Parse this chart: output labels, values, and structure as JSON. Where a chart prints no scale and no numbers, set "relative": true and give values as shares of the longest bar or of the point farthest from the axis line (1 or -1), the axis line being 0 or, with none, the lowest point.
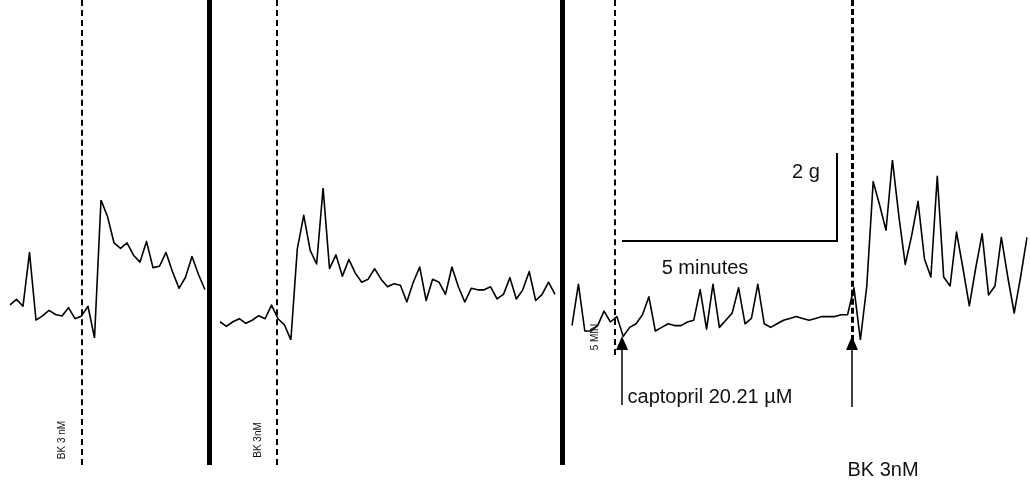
{
  "chart_data": [
    {
      "type": "line",
      "relative": true,
      "color": "#000000",
      "marker": "none",
      "tick_labels": false,
      "categories": [
        null,
        null,
        null,
        null,
        null,
        null,
        null,
        null,
        null,
        null,
        null,
        null,
        null,
        null,
        null,
        null,
        null,
        null,
        null,
        null,
        null,
        null,
        null,
        null,
        null,
        null,
        null,
        null,
        null,
        null,
        null
      ],
      "values": [
        0.24,
        0.28,
        0.23,
        0.62,
        0.13,
        0.16,
        0.2,
        0.17,
        0.16,
        0.22,
        0.14,
        0.16,
        0.23,
        0,
        1,
        0.88,
        0.69,
        0.65,
        0.69,
        0.6,
        0.55,
        0.7,
        0.51,
        0.52,
        0.62,
        0.48,
        0.36,
        0.44,
        0.59,
        0.46,
        0.35
      ],
      "annotations": [
        "BK 3 nM"
      ]
    },
    {
      "type": "line",
      "relative": true,
      "color": "#000000",
      "marker": "none",
      "tick_labels": false,
      "categories": [
        null,
        null,
        null,
        null,
        null,
        null,
        null,
        null,
        null,
        null,
        null,
        null,
        null,
        null,
        null,
        null,
        null,
        null,
        null,
        null,
        null,
        null,
        null,
        null,
        null,
        null,
        null,
        null,
        null,
        null,
        null,
        null,
        null,
        null,
        null,
        null,
        null,
        null,
        null,
        null,
        null,
        null,
        null,
        null,
        null,
        null,
        null,
        null,
        null,
        null,
        null,
        null,
        null
      ],
      "values": [
        0.12,
        0.09,
        0.12,
        0.14,
        0.11,
        0.13,
        0.16,
        0.14,
        0.23,
        0.14,
        0.1,
        0,
        0.6,
        0.82,
        0.59,
        0.5,
        1,
        0.47,
        0.56,
        0.42,
        0.53,
        0.44,
        0.38,
        0.4,
        0.47,
        0.4,
        0.35,
        0.37,
        0.36,
        0.25,
        0.38,
        0.48,
        0.26,
        0.4,
        0.38,
        0.3,
        0.48,
        0.35,
        0.25,
        0.34,
        0.33,
        0.33,
        0.35,
        0.27,
        0.3,
        0.41,
        0.27,
        0.33,
        0.45,
        0.26,
        0.3,
        0.38,
        0.3
      ],
      "annotations": [
        "BK 3nM"
      ]
    },
    {
      "type": "line",
      "relative": true,
      "color": "#000000",
      "marker": "none",
      "tick_labels": false,
      "categories": [
        null,
        null,
        null,
        null,
        null,
        null,
        null,
        null,
        null,
        null,
        null,
        null,
        null,
        null,
        null,
        null,
        null,
        null,
        null,
        null,
        null,
        null,
        null,
        null,
        null,
        null,
        null,
        null,
        null,
        null,
        null,
        null,
        null,
        null,
        null,
        null,
        null,
        null,
        null,
        null,
        null,
        null,
        null,
        null,
        null,
        null,
        null,
        null,
        null,
        null,
        null,
        null,
        null,
        null,
        null,
        null,
        null,
        null,
        null,
        null,
        null,
        null,
        null,
        null,
        null,
        null,
        null,
        null,
        null,
        null,
        null,
        null
      ],
      "values": [
        0.08,
        0.31,
        0.05,
        0.05,
        0.08,
        0.16,
        0.1,
        0.13,
        0.02,
        0.07,
        0.09,
        0.14,
        0.24,
        0.05,
        0.07,
        0.09,
        0.08,
        0.08,
        0.1,
        0.11,
        0.28,
        0.06,
        0.31,
        0.07,
        0.11,
        0.15,
        0.29,
        0.09,
        0.12,
        0.31,
        0.09,
        0.07,
        0.09,
        0.11,
        0.12,
        0.13,
        0.12,
        0.11,
        0.12,
        0.13,
        0.13,
        0.13,
        0.14,
        0.14,
        0.29,
        0,
        0.3,
        0.88,
        0.75,
        0.61,
        1,
        0.69,
        0.42,
        0.58,
        0.77,
        0.45,
        0.35,
        0.91,
        0.35,
        0.3,
        0.6,
        0.4,
        0.19,
        0.4,
        0.59,
        0.25,
        0.3,
        0.57,
        0.35,
        0.15,
        0.35,
        0.57
      ],
      "annotations": [
        "5 MIN",
        "2 g",
        "5 minutes",
        "captopril 20.21 µM",
        "BK 3nM"
      ]
    }
  ]
}
